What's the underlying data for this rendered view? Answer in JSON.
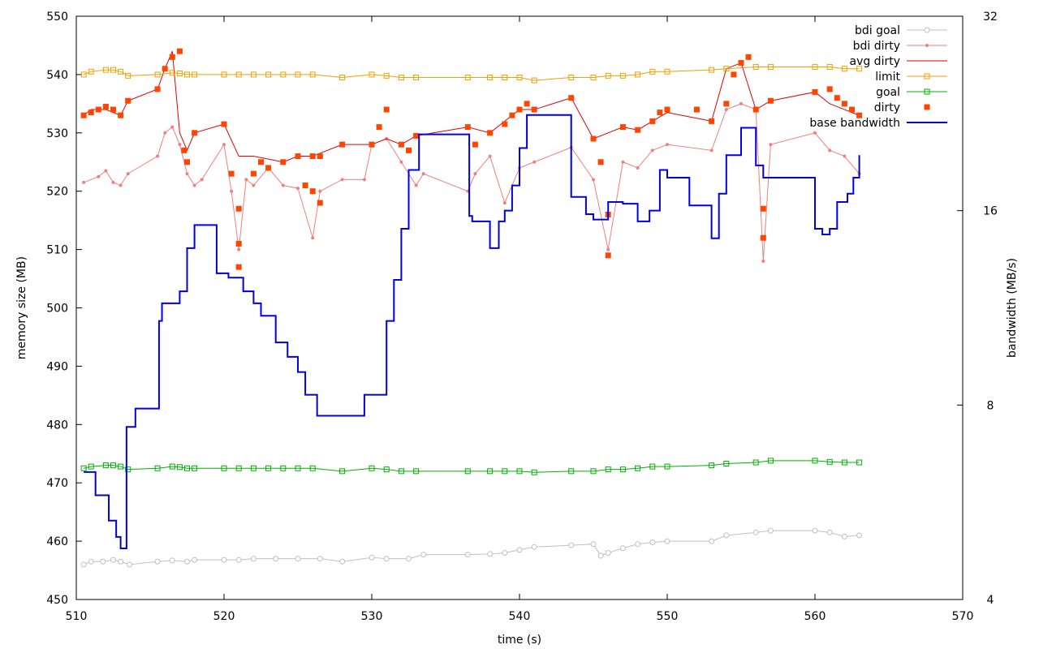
{
  "chart_data": {
    "type": "line",
    "xlabel": "time (s)",
    "ylabel": "memory size (MB)",
    "y2label": "bandwidth (MB/s)",
    "xlim": [
      510,
      570
    ],
    "ylim": [
      450,
      550
    ],
    "y2lim": [
      4,
      32
    ],
    "y2scale": "log2",
    "xticks": [
      "510",
      "520",
      "530",
      "540",
      "550",
      "560",
      "570"
    ],
    "yticks": [
      "450",
      "460",
      "470",
      "480",
      "490",
      "500",
      "510",
      "520",
      "530",
      "540",
      "550"
    ],
    "y2ticks": [
      "4",
      "8",
      "16",
      "32"
    ],
    "legend_position": "top-right",
    "legend": [
      "bdi goal",
      "bdi dirty",
      "avg dirty",
      "limit",
      "goal",
      "dirty",
      "base bandwidth"
    ],
    "colors": {
      "bdi_goal": "#c0c0c0",
      "bdi_dirty": "#f08080",
      "avg_dirty": "#e00000",
      "limit": "#f0a000",
      "goal": "#00b000",
      "dirty": "#ff4500",
      "base_bandwidth": "#0000e0"
    },
    "series": [
      {
        "name": "bdi goal",
        "axis": "y1",
        "style": "line-open-circle",
        "x": [
          510.5,
          511.0,
          511.8,
          512.5,
          513.0,
          513.6,
          515.5,
          516.5,
          517.5,
          518.0,
          520.0,
          521.0,
          522.0,
          523.5,
          525.0,
          526.5,
          528.0,
          530.0,
          531.0,
          532.5,
          533.5,
          536.5,
          538.0,
          539.0,
          540.0,
          541.0,
          543.5,
          545.0,
          545.5,
          546.0,
          547.0,
          548.0,
          549.0,
          550.0,
          553.0,
          554.0,
          556.0,
          557.0,
          560.0,
          561.0,
          562.0,
          563.0
        ],
        "y": [
          456.0,
          456.5,
          456.5,
          456.8,
          456.5,
          456.0,
          456.5,
          456.7,
          456.5,
          456.8,
          456.8,
          456.8,
          457.0,
          457.0,
          457.0,
          457.0,
          456.5,
          457.2,
          457.0,
          457.0,
          457.7,
          457.7,
          457.8,
          458.0,
          458.5,
          459.0,
          459.3,
          459.5,
          457.5,
          458.0,
          458.8,
          459.5,
          459.8,
          460.0,
          460.0,
          461.0,
          461.5,
          461.8,
          461.8,
          461.5,
          460.8,
          461.0
        ]
      },
      {
        "name": "bdi dirty",
        "axis": "y1",
        "style": "line-dot",
        "x": [
          510.5,
          511.5,
          512.0,
          512.5,
          513.0,
          513.5,
          515.5,
          516.0,
          516.5,
          517.0,
          517.5,
          518.0,
          518.5,
          520.0,
          520.5,
          521.0,
          521.5,
          522.0,
          523.0,
          524.0,
          525.0,
          526.0,
          526.5,
          528.0,
          529.5,
          530.0,
          531.0,
          532.0,
          533.0,
          533.5,
          536.5,
          537.0,
          538.0,
          539.0,
          540.0,
          541.0,
          543.5,
          545.0,
          546.0,
          547.0,
          548.0,
          549.0,
          550.0,
          553.0,
          554.0,
          555.0,
          556.0,
          556.5,
          557.0,
          560.0,
          561.0,
          562.0,
          563.0
        ],
        "y": [
          521.5,
          522.5,
          523.5,
          521.5,
          521.0,
          523.0,
          526.0,
          530.0,
          531.0,
          528.0,
          523.0,
          521.0,
          522.0,
          528.0,
          520.0,
          510.0,
          522.0,
          521.0,
          524.0,
          521.0,
          520.5,
          512.0,
          520.0,
          522.0,
          522.0,
          528.0,
          529.0,
          525.0,
          521.0,
          523.0,
          520.0,
          523.0,
          526.0,
          518.0,
          524.0,
          525.0,
          527.5,
          522.0,
          510.0,
          525.0,
          524.0,
          527.0,
          528.0,
          527.0,
          534.0,
          535.0,
          534.0,
          508.0,
          528.0,
          530.0,
          527.0,
          526.0,
          523.0
        ]
      },
      {
        "name": "avg dirty",
        "axis": "y1",
        "style": "line",
        "x": [
          510.5,
          511.0,
          512.0,
          513.0,
          513.5,
          515.5,
          516.0,
          516.5,
          517.0,
          517.5,
          518.0,
          520.0,
          521.0,
          522.0,
          523.0,
          524.0,
          525.0,
          526.0,
          528.0,
          530.0,
          531.0,
          532.0,
          533.0,
          536.5,
          538.0,
          539.0,
          540.0,
          541.0,
          543.5,
          545.0,
          546.0,
          547.0,
          548.0,
          549.0,
          550.0,
          553.0,
          554.0,
          555.0,
          556.0,
          557.0,
          560.0,
          561.0,
          562.0,
          563.0
        ],
        "y": [
          533.0,
          534.0,
          534.0,
          533.0,
          535.5,
          537.5,
          541.0,
          544.0,
          530.0,
          527.0,
          530.0,
          531.5,
          526.0,
          526.0,
          525.5,
          525.0,
          526.0,
          526.0,
          528.0,
          528.0,
          529.0,
          528.0,
          529.5,
          531.0,
          530.0,
          532.0,
          534.0,
          534.0,
          536.0,
          529.0,
          530.0,
          531.0,
          530.5,
          532.0,
          533.5,
          532.0,
          541.0,
          542.0,
          534.0,
          535.5,
          537.0,
          535.0,
          534.0,
          533.0
        ]
      },
      {
        "name": "limit",
        "axis": "y1",
        "style": "line-open-square",
        "x": [
          510.5,
          511.0,
          512.0,
          512.5,
          513.0,
          513.5,
          515.5,
          516.5,
          517.0,
          517.5,
          518.0,
          520.0,
          521.0,
          522.0,
          523.0,
          524.0,
          525.0,
          526.0,
          528.0,
          530.0,
          531.0,
          532.0,
          533.0,
          536.5,
          538.0,
          539.0,
          540.0,
          541.0,
          543.5,
          545.0,
          546.0,
          547.0,
          548.0,
          549.0,
          550.0,
          553.0,
          554.0,
          556.0,
          557.0,
          560.0,
          561.0,
          562.0,
          563.0
        ],
        "y": [
          540.0,
          540.5,
          540.8,
          540.8,
          540.5,
          539.8,
          540.0,
          540.3,
          540.2,
          540.0,
          540.0,
          540.0,
          540.0,
          540.0,
          540.0,
          540.0,
          540.0,
          540.0,
          539.5,
          540.0,
          539.8,
          539.5,
          539.5,
          539.5,
          539.5,
          539.5,
          539.5,
          539.0,
          539.5,
          539.5,
          539.8,
          539.8,
          540.0,
          540.5,
          540.5,
          540.8,
          541.0,
          541.3,
          541.3,
          541.3,
          541.3,
          541.0,
          541.0
        ]
      },
      {
        "name": "goal",
        "axis": "y1",
        "style": "line-open-square",
        "x": [
          510.5,
          511.0,
          512.0,
          512.5,
          513.0,
          513.5,
          515.5,
          516.5,
          517.0,
          517.5,
          518.0,
          520.0,
          521.0,
          522.0,
          523.0,
          524.0,
          525.0,
          526.0,
          528.0,
          530.0,
          531.0,
          532.0,
          533.0,
          536.5,
          538.0,
          539.0,
          540.0,
          541.0,
          543.5,
          545.0,
          546.0,
          547.0,
          548.0,
          549.0,
          550.0,
          553.0,
          554.0,
          556.0,
          557.0,
          560.0,
          561.0,
          562.0,
          563.0
        ],
        "y": [
          472.5,
          472.8,
          473.0,
          473.0,
          472.8,
          472.3,
          472.5,
          472.8,
          472.7,
          472.5,
          472.5,
          472.5,
          472.5,
          472.5,
          472.5,
          472.5,
          472.5,
          472.5,
          472.0,
          472.5,
          472.3,
          472.0,
          472.0,
          472.0,
          472.0,
          472.0,
          472.0,
          471.8,
          472.0,
          472.0,
          472.3,
          472.3,
          472.5,
          472.8,
          472.8,
          473.0,
          473.3,
          473.5,
          473.8,
          473.8,
          473.6,
          473.5,
          473.5
        ]
      },
      {
        "name": "dirty",
        "axis": "y1",
        "style": "filled-square",
        "x": [
          510.5,
          511.0,
          511.5,
          512.0,
          512.5,
          513.0,
          513.5,
          515.5,
          516.0,
          516.5,
          517.0,
          517.3,
          517.5,
          518.0,
          520.0,
          520.5,
          521.0,
          521.0,
          521.0,
          522.0,
          522.5,
          523.0,
          524.0,
          525.0,
          525.5,
          526.0,
          526.0,
          526.5,
          526.5,
          528.0,
          530.0,
          530.5,
          531.0,
          532.0,
          532.5,
          533.0,
          536.5,
          537.0,
          538.0,
          539.0,
          539.5,
          540.0,
          540.5,
          541.0,
          543.5,
          545.0,
          545.5,
          546.0,
          546.0,
          547.0,
          548.0,
          549.0,
          549.5,
          550.0,
          552.0,
          553.0,
          554.0,
          554.5,
          555.0,
          555.5,
          556.0,
          556.5,
          556.5,
          557.0,
          560.0,
          561.0,
          561.5,
          562.0,
          562.5,
          563.0
        ],
        "y": [
          533.0,
          533.5,
          534.0,
          534.5,
          534.0,
          533.0,
          535.5,
          537.5,
          541.0,
          543.0,
          544.0,
          527.0,
          525.0,
          530.0,
          531.5,
          523.0,
          517.0,
          511.0,
          507.0,
          523.0,
          525.0,
          524.0,
          525.0,
          526.0,
          521.0,
          526.0,
          520.0,
          526.0,
          518.0,
          528.0,
          528.0,
          531.0,
          534.0,
          528.0,
          527.0,
          529.5,
          531.0,
          528.0,
          530.0,
          531.5,
          533.0,
          534.0,
          535.0,
          534.0,
          536.0,
          529.0,
          525.0,
          516.0,
          509.0,
          531.0,
          530.5,
          532.0,
          533.5,
          534.0,
          534.0,
          532.0,
          535.0,
          540.0,
          542.0,
          543.0,
          534.0,
          517.0,
          512.0,
          535.5,
          537.0,
          537.5,
          536.0,
          535.0,
          534.0,
          533.0
        ]
      },
      {
        "name": "base bandwidth",
        "axis": "y2",
        "style": "step",
        "x": [
          510.5,
          511.3,
          512.2,
          512.7,
          513.0,
          513.4,
          514.0,
          515.6,
          515.8,
          516.5,
          517.0,
          517.5,
          518.0,
          519.5,
          520.3,
          521.3,
          522.0,
          522.5,
          523.5,
          524.3,
          525.0,
          525.5,
          526.3,
          528.0,
          529.5,
          530.5,
          531.0,
          531.5,
          532.0,
          532.5,
          533.2,
          533.6,
          536.6,
          536.8,
          538.0,
          538.6,
          539.0,
          539.5,
          540.0,
          540.5,
          541.0,
          543.5,
          544.5,
          545.0,
          546.0,
          547.0,
          548.0,
          548.8,
          549.5,
          550.0,
          551.5,
          553.0,
          553.5,
          554.0,
          555.0,
          556.0,
          556.5,
          559.0,
          560.0,
          560.5,
          561.0,
          561.5,
          562.2,
          562.6,
          563.0
        ],
        "y": [
          6.3,
          5.8,
          5.3,
          5.0,
          4.8,
          7.4,
          7.9,
          10.8,
          11.5,
          11.5,
          12.0,
          14.0,
          15.2,
          12.8,
          12.6,
          12.0,
          11.5,
          11.0,
          10.0,
          9.5,
          9.0,
          8.3,
          7.7,
          7.7,
          8.3,
          8.3,
          10.8,
          12.5,
          15.0,
          18.5,
          21.0,
          21.0,
          15.7,
          15.4,
          14.0,
          15.4,
          16.0,
          17.5,
          20.0,
          22.5,
          22.5,
          16.8,
          15.8,
          15.5,
          16.5,
          16.4,
          15.4,
          16.0,
          18.5,
          18.0,
          16.3,
          14.5,
          17.0,
          19.5,
          21.5,
          18.8,
          18.0,
          18.0,
          15.0,
          14.7,
          15.0,
          16.5,
          17.0,
          18.0,
          19.5
        ]
      }
    ]
  }
}
